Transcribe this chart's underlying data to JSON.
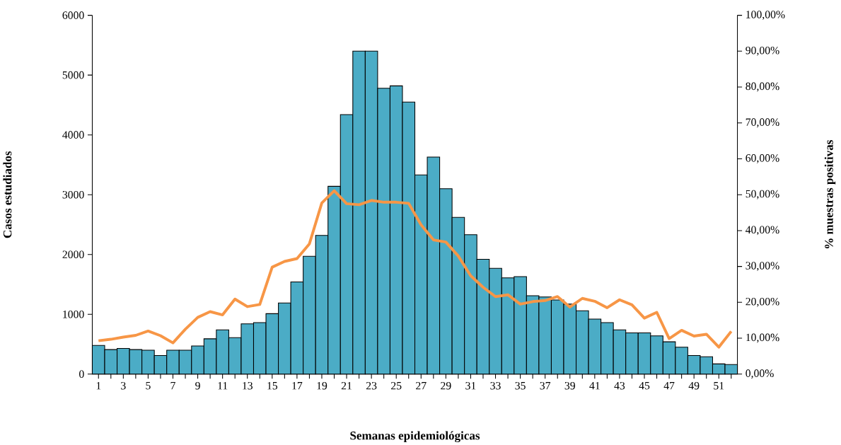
{
  "chart_data": {
    "type": "bar",
    "xlabel": "Semanas epidemiológicas",
    "ylabel": "Casos estudiados",
    "y2label": "% muestras positivas",
    "categories": [
      "1",
      null,
      "3",
      null,
      "5",
      null,
      "7",
      null,
      "9",
      null,
      "11",
      null,
      "13",
      null,
      "15",
      null,
      "17",
      null,
      "19",
      null,
      "21",
      null,
      "23",
      null,
      "25",
      null,
      "27",
      null,
      "29",
      null,
      "31",
      null,
      "33",
      null,
      "35",
      null,
      "37",
      null,
      "39",
      null,
      "41",
      null,
      "43",
      null,
      "45",
      null,
      "47",
      null,
      "49",
      null,
      "51",
      null
    ],
    "series": [
      {
        "color": "#4bacc6",
        "values": [
          480,
          410,
          430,
          410,
          400,
          310,
          400,
          400,
          470,
          590,
          740,
          610,
          840,
          860,
          1010,
          1190,
          1540,
          1970,
          2320,
          3140,
          4340,
          5400,
          5400,
          4780,
          4820,
          4550,
          3330,
          3630,
          3100,
          2620,
          2330,
          1920,
          1770,
          1610,
          1630,
          1310,
          1290,
          1240,
          1170,
          1060,
          920,
          860,
          740,
          690,
          690,
          640,
          540,
          450,
          310,
          290,
          170,
          160
        ]
      },
      {
        "type": "line",
        "axis": "y2",
        "color": "#f79646",
        "line_style": "solid",
        "values": [
          9.3,
          9.7,
          10.3,
          10.8,
          12.0,
          10.7,
          8.7,
          12.5,
          15.8,
          17.4,
          16.5,
          20.9,
          18.8,
          19.4,
          29.8,
          31.4,
          32.2,
          36.3,
          47.7,
          51.1,
          47.5,
          47.2,
          48.4,
          47.9,
          47.9,
          47.6,
          41.6,
          37.4,
          36.8,
          32.9,
          27.4,
          24.2,
          21.6,
          22.1,
          19.5,
          20.2,
          20.5,
          21.6,
          18.7,
          21.1,
          20.3,
          18.5,
          20.7,
          19.3,
          15.6,
          17.2,
          9.9,
          12.2,
          10.6,
          11.1,
          7.5,
          11.9
        ]
      }
    ],
    "ylim": [
      0,
      6000
    ],
    "yticks": [
      0,
      1000,
      2000,
      3000,
      4000,
      5000,
      6000
    ],
    "y2lim": [
      0,
      100
    ],
    "y2ticks": [
      {
        "value": 0,
        "label": "0,00%"
      },
      {
        "value": 10,
        "label": "10,00%"
      },
      {
        "value": 20,
        "label": "20,00%"
      },
      {
        "value": 30,
        "label": "30,00%"
      },
      {
        "value": 40,
        "label": "40,00%"
      },
      {
        "value": 50,
        "label": "50,00%"
      },
      {
        "value": 60,
        "label": "60,00%"
      },
      {
        "value": 70,
        "label": "70,00%"
      },
      {
        "value": 80,
        "label": "80,00%"
      },
      {
        "value": 90,
        "label": "90,00%"
      },
      {
        "value": 100,
        "label": "100,00%"
      }
    ],
    "marker": "none",
    "grid": false,
    "legend": false
  }
}
